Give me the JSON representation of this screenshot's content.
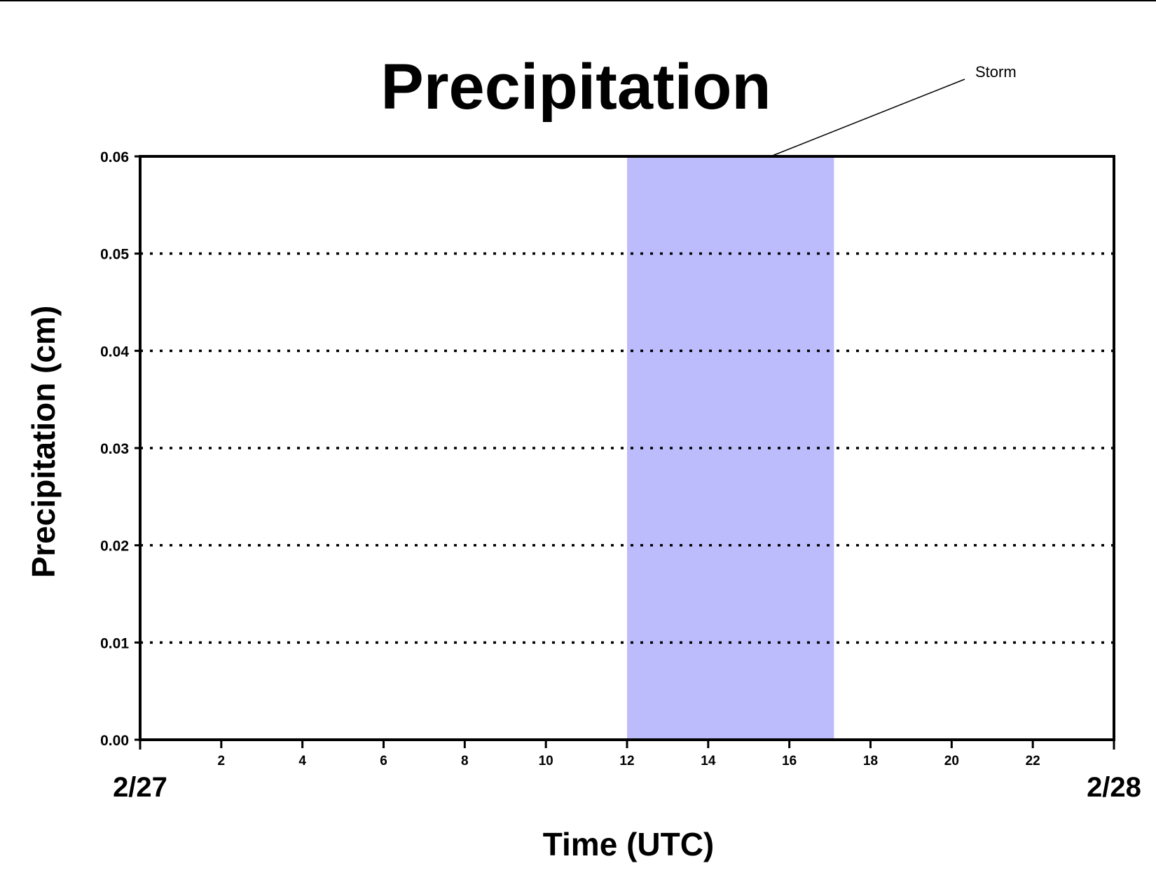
{
  "chart_data": {
    "type": "line",
    "title": "Precipitation",
    "xlabel": "Time (UTC)",
    "ylabel": "Precipitation (cm)",
    "xlim": [
      0,
      24
    ],
    "ylim": [
      0,
      0.06
    ],
    "x_ticks": [
      2,
      4,
      6,
      8,
      10,
      12,
      14,
      16,
      18,
      20,
      22
    ],
    "y_ticks": [
      "0.00",
      "0.01",
      "0.02",
      "0.03",
      "0.04",
      "0.05",
      "0.06"
    ],
    "date_labels": {
      "start": "2/27",
      "end": "2/28"
    },
    "grid": {
      "horizontal": true,
      "style": "dotted"
    },
    "series": [
      {
        "x": [
          0,
          24
        ],
        "values": [
          0,
          0
        ],
        "color": "#8b0000"
      }
    ],
    "shaded_region": {
      "x_start": 12,
      "x_end": 17.1,
      "color": "#bcbcfc",
      "label": "Storm"
    }
  }
}
